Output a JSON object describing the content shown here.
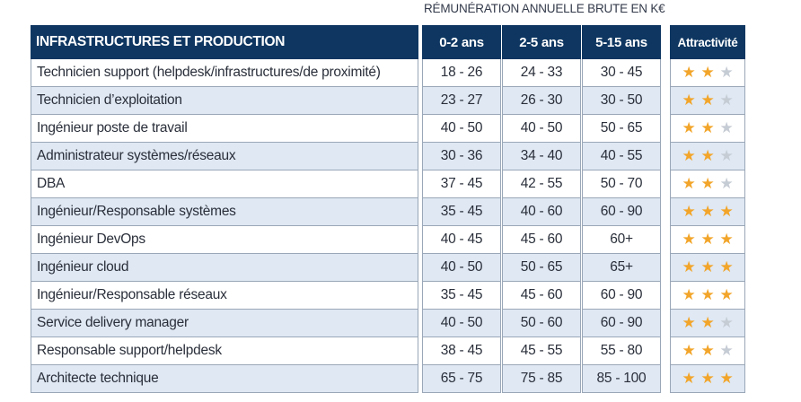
{
  "caption": "RÉMUNÉRATION ANNUELLE BRUTE EN K€",
  "header": {
    "category": "INFRASTRUCTURES ET PRODUCTION",
    "col1": "0-2 ans",
    "col2": "2-5 ans",
    "col3": "5-15 ans",
    "attr": "Attractivité"
  },
  "star_colors": {
    "on": "#f2a52a",
    "off": "#c6ccd4"
  },
  "rows": [
    {
      "name": "Technicien support (helpdesk/infrastructures/de proximité)",
      "c1": "18 - 26",
      "c2": "24 - 33",
      "c3": "30 - 45",
      "stars": 2
    },
    {
      "name": "Technicien d’exploitation",
      "c1": "23 - 27",
      "c2": "26 - 30",
      "c3": "30 - 50",
      "stars": 2
    },
    {
      "name": "Ingénieur poste de travail",
      "c1": "40 - 50",
      "c2": "40 - 50",
      "c3": "50 - 65",
      "stars": 2
    },
    {
      "name": "Administrateur systèmes/réseaux",
      "c1": "30 - 36",
      "c2": "34 - 40",
      "c3": "40 - 55",
      "stars": 2
    },
    {
      "name": "DBA",
      "c1": "37 - 45",
      "c2": "42 - 55",
      "c3": "50 - 70",
      "stars": 2
    },
    {
      "name": "Ingénieur/Responsable systèmes",
      "c1": "35 - 45",
      "c2": "40 - 60",
      "c3": "60 - 90",
      "stars": 3
    },
    {
      "name": "Ingénieur DevOps",
      "c1": "40 - 45",
      "c2": "45 - 60",
      "c3": "60+",
      "stars": 3
    },
    {
      "name": "Ingénieur cloud",
      "c1": "40 - 50",
      "c2": "50 - 65",
      "c3": "65+",
      "stars": 3
    },
    {
      "name": "Ingénieur/Responsable réseaux",
      "c1": "35 - 45",
      "c2": "45 - 60",
      "c3": "60 - 90",
      "stars": 3
    },
    {
      "name": "Service delivery manager",
      "c1": "40 - 50",
      "c2": "50 - 60",
      "c3": "60 - 90",
      "stars": 2
    },
    {
      "name": "Responsable support/helpdesk",
      "c1": "38 - 45",
      "c2": "45 - 55",
      "c3": "55 - 80",
      "stars": 2
    },
    {
      "name": "Architecte technique",
      "c1": "65 - 75",
      "c2": "75 - 85",
      "c3": "85 - 100",
      "stars": 3
    }
  ]
}
